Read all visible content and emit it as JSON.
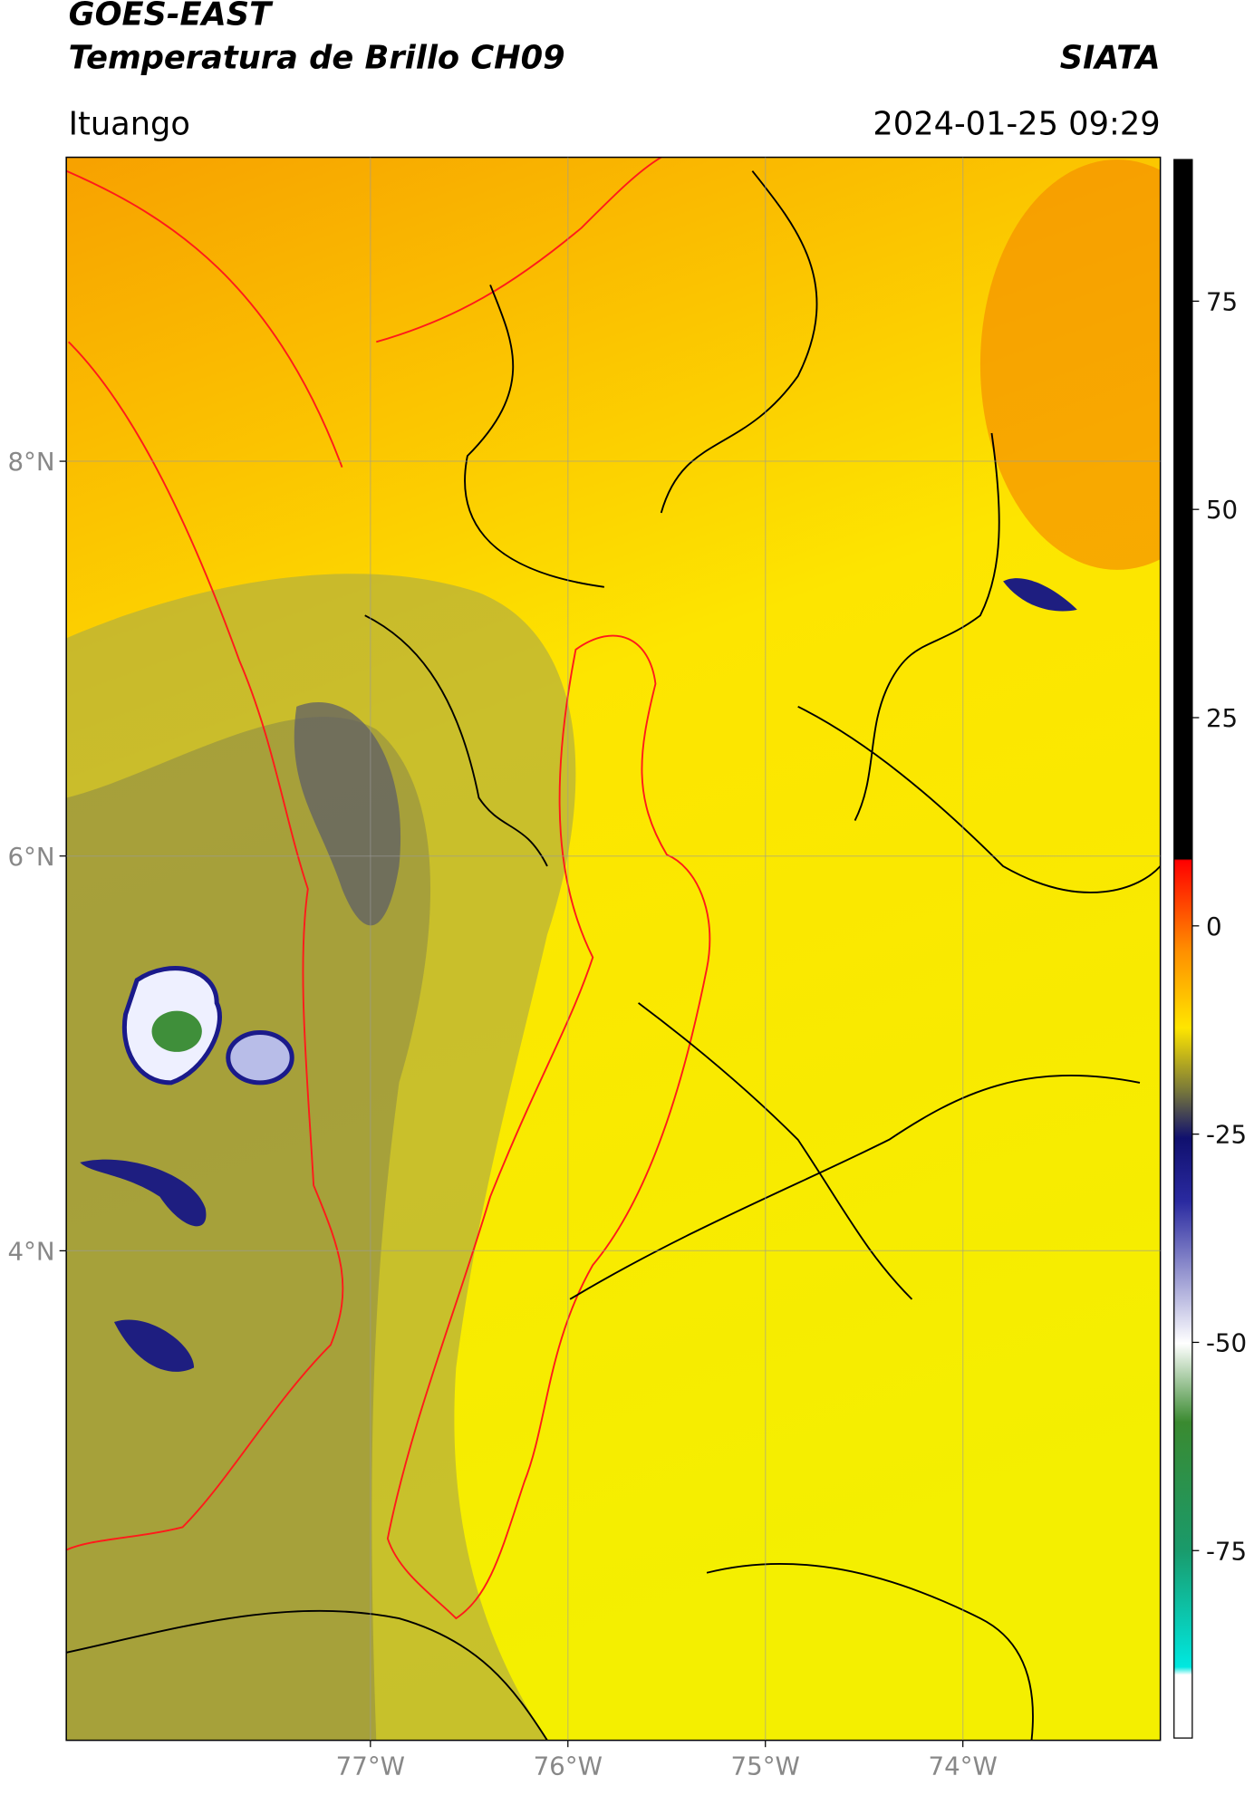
{
  "chart_data": {
    "type": "map",
    "title": [
      "GOES-EAST",
      "Temperatura de Brillo CH09"
    ],
    "source": "SIATA",
    "subtitle": "Ituango",
    "datetime": "2024-01-25 09:29",
    "xlim": [
      -78.54,
      -73.0
    ],
    "ylim": [
      1.52,
      9.54
    ],
    "xticks": [
      {
        "value": -77,
        "label": "77°W"
      },
      {
        "value": -76,
        "label": "76°W"
      },
      {
        "value": -75,
        "label": "75°W"
      },
      {
        "value": -74,
        "label": "74°W"
      }
    ],
    "yticks": [
      {
        "value": 8,
        "label": "8°N"
      },
      {
        "value": 6,
        "label": "6°N"
      },
      {
        "value": 4,
        "label": "4°N"
      }
    ],
    "grid": true,
    "colorbar": {
      "lim": [
        -97.5,
        92
      ],
      "ticks": [
        -75,
        -50,
        -25,
        0,
        25,
        50,
        75
      ]
    }
  }
}
